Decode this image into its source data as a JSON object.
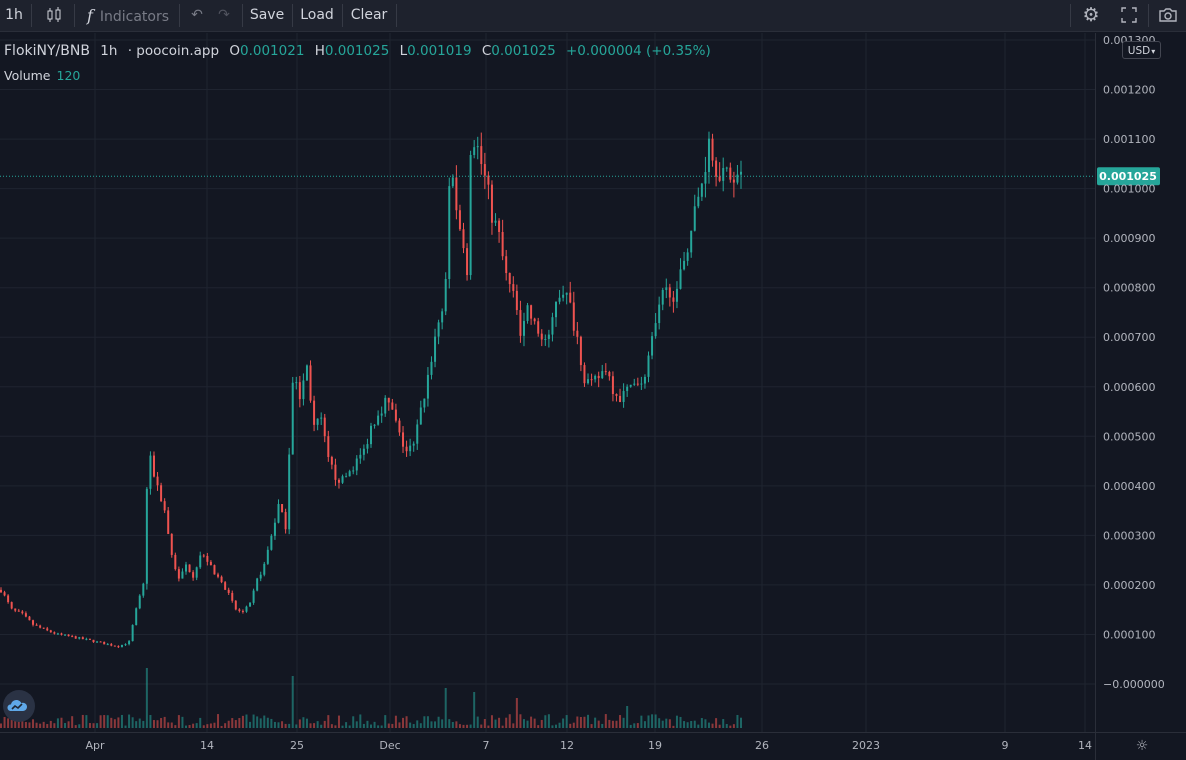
{
  "toolbar": {
    "interval": "1h",
    "indicators_label": "Indicators",
    "save_label": "Save",
    "load_label": "Load",
    "clear_label": "Clear"
  },
  "legend": {
    "symbol": "FlokiNY/BNB",
    "interval": "1h",
    "source": "poocoin.app",
    "o_label": "O",
    "o_value": "0.001021",
    "h_label": "H",
    "h_value": "0.001025",
    "l_label": "L",
    "l_value": "0.001019",
    "c_label": "C",
    "c_value": "0.001025",
    "change": "+0.000004 (+0.35%)",
    "volume_label": "Volume",
    "volume_value": "120"
  },
  "currency": "USD",
  "colors": {
    "up": "#26a69a",
    "down": "#ef5350",
    "background": "#131722",
    "grid": "#1f2430",
    "text": "#d1d4dc"
  },
  "chart_data": {
    "type": "candlestick",
    "symbol": "FlokiNY/BNB",
    "ylim": [
      -9e-05,
      0.0013
    ],
    "y_ticks": [
      {
        "value": 0.0013,
        "label": "0.001300"
      },
      {
        "value": 0.0012,
        "label": "0.001200"
      },
      {
        "value": 0.0011,
        "label": "0.001100"
      },
      {
        "value": 0.001,
        "label": "0.001000"
      },
      {
        "value": 0.0009,
        "label": "0.000900"
      },
      {
        "value": 0.0008,
        "label": "0.000800"
      },
      {
        "value": 0.0007,
        "label": "0.000700"
      },
      {
        "value": 0.0006,
        "label": "0.000600"
      },
      {
        "value": 0.0005,
        "label": "0.000500"
      },
      {
        "value": 0.0004,
        "label": "0.000400"
      },
      {
        "value": 0.0003,
        "label": "0.000300"
      },
      {
        "value": 0.0002,
        "label": "0.000200"
      },
      {
        "value": 0.0001,
        "label": "0.000100"
      },
      {
        "value": 0,
        "label": "−0.000000"
      }
    ],
    "x_ticks": [
      "Apr",
      "14",
      "25",
      "Dec",
      "7",
      "12",
      "19",
      "26",
      "2023",
      "9",
      "14"
    ],
    "last_price": 0.001025,
    "last_price_label": "0.001025",
    "price_path": [
      [
        0,
        0.00019
      ],
      [
        3,
        0.00015
      ],
      [
        6,
        0.00014
      ],
      [
        9,
        0.00012
      ],
      [
        12,
        0.00011
      ],
      [
        16,
        0.0001
      ],
      [
        20,
        9.5e-05
      ],
      [
        25,
        8.8e-05
      ],
      [
        30,
        8e-05
      ],
      [
        33,
        7.6e-05
      ],
      [
        36,
        8.5e-05
      ],
      [
        38,
        0.00015
      ],
      [
        40,
        0.0002
      ],
      [
        41,
        0.0004
      ],
      [
        42,
        0.00045
      ],
      [
        44,
        0.0004
      ],
      [
        46,
        0.00035
      ],
      [
        48,
        0.00026
      ],
      [
        50,
        0.00021
      ],
      [
        52,
        0.00024
      ],
      [
        54,
        0.00022
      ],
      [
        56,
        0.00026
      ],
      [
        58,
        0.00025
      ],
      [
        60,
        0.00022
      ],
      [
        62,
        0.00021
      ],
      [
        64,
        0.00018
      ],
      [
        66,
        0.00015
      ],
      [
        68,
        0.000145
      ],
      [
        70,
        0.00016
      ],
      [
        72,
        0.00021
      ],
      [
        74,
        0.00024
      ],
      [
        76,
        0.0003
      ],
      [
        78,
        0.00036
      ],
      [
        80,
        0.00032
      ],
      [
        82,
        0.00062
      ],
      [
        84,
        0.00058
      ],
      [
        86,
        0.00064
      ],
      [
        88,
        0.00052
      ],
      [
        90,
        0.00053
      ],
      [
        92,
        0.00045
      ],
      [
        94,
        0.00042
      ],
      [
        96,
        0.00041
      ],
      [
        98,
        0.00043
      ],
      [
        100,
        0.00045
      ],
      [
        102,
        0.00047
      ],
      [
        104,
        0.00052
      ],
      [
        106,
        0.00055
      ],
      [
        108,
        0.00057
      ],
      [
        110,
        0.00055
      ],
      [
        112,
        0.0005
      ],
      [
        114,
        0.00047
      ],
      [
        116,
        0.00048
      ],
      [
        118,
        0.00055
      ],
      [
        120,
        0.00062
      ],
      [
        122,
        0.0007
      ],
      [
        124,
        0.00076
      ],
      [
        125,
        0.0008
      ],
      [
        126,
        0.001
      ],
      [
        127,
        0.00104
      ],
      [
        128,
        0.00095
      ],
      [
        130,
        0.0009
      ],
      [
        131,
        0.00082
      ],
      [
        132,
        0.00105
      ],
      [
        133,
        0.0011
      ],
      [
        134,
        0.00108
      ],
      [
        136,
        0.00102
      ],
      [
        138,
        0.00095
      ],
      [
        140,
        0.0009
      ],
      [
        142,
        0.00082
      ],
      [
        144,
        0.00078
      ],
      [
        146,
        0.00072
      ],
      [
        148,
        0.00076
      ],
      [
        150,
        0.00072
      ],
      [
        152,
        0.0007
      ],
      [
        154,
        0.00069
      ],
      [
        156,
        0.00078
      ],
      [
        158,
        0.0008
      ],
      [
        160,
        0.00076
      ],
      [
        162,
        0.0007
      ],
      [
        164,
        0.00062
      ],
      [
        166,
        0.0006
      ],
      [
        168,
        0.00062
      ],
      [
        170,
        0.00064
      ],
      [
        172,
        0.0006
      ],
      [
        174,
        0.00058
      ],
      [
        176,
        0.00059
      ],
      [
        178,
        0.00062
      ],
      [
        180,
        0.0006
      ],
      [
        182,
        0.00066
      ],
      [
        184,
        0.00072
      ],
      [
        186,
        0.00078
      ],
      [
        188,
        0.0008
      ],
      [
        190,
        0.00078
      ],
      [
        192,
        0.00086
      ],
      [
        194,
        0.00092
      ],
      [
        196,
        0.00098
      ],
      [
        198,
        0.00105
      ],
      [
        199,
        0.00112
      ],
      [
        200,
        0.00106
      ],
      [
        202,
        0.00104
      ],
      [
        204,
        0.00102
      ],
      [
        206,
        0.00103
      ],
      [
        208,
        0.001025
      ]
    ],
    "volume_bars": 208
  }
}
